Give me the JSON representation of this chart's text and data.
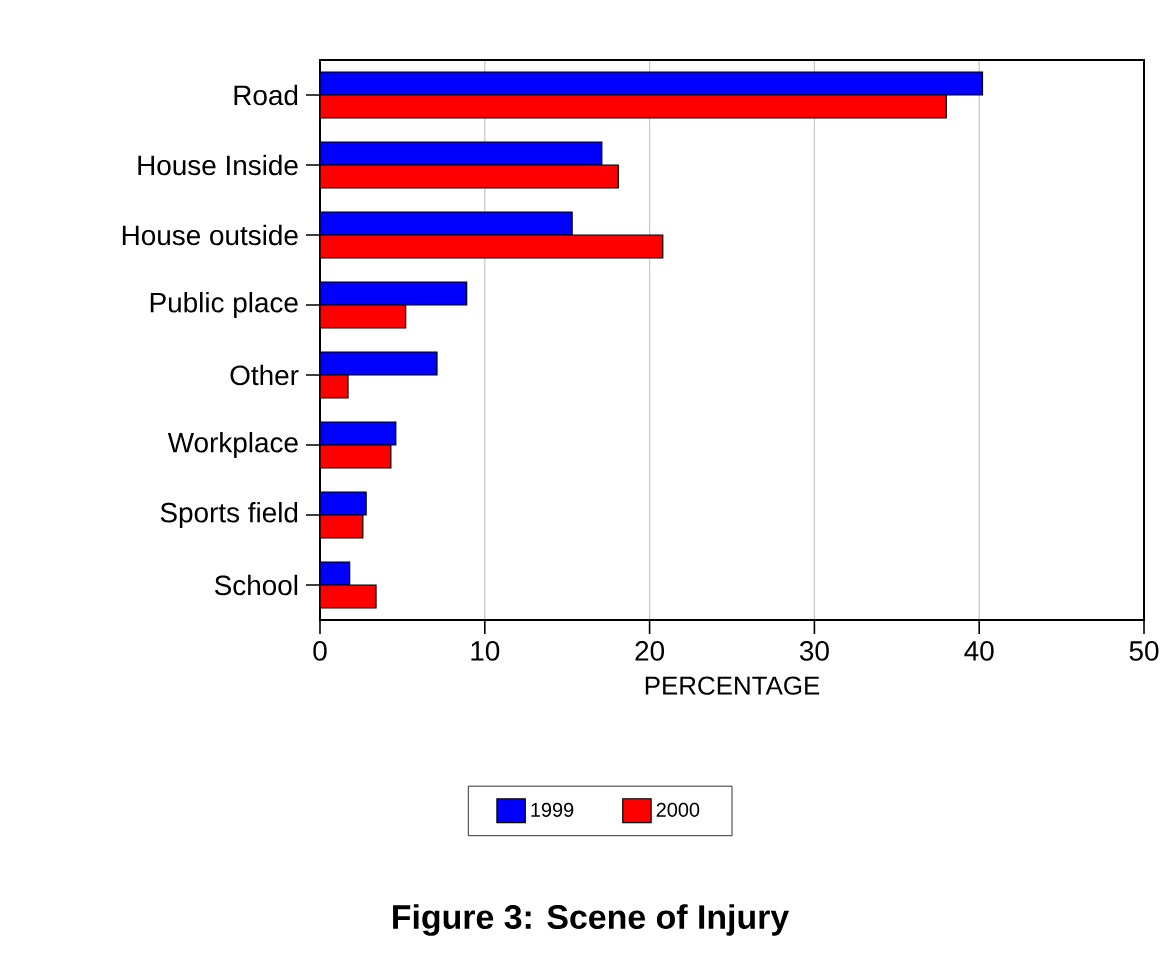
{
  "chart_data": {
    "type": "bar",
    "orientation": "horizontal",
    "title": "Figure 3: Scene of Injury",
    "xlabel": "PERCENTAGE",
    "categories": [
      "Road",
      "House Inside",
      "House outside",
      "Public place",
      "Other",
      "Workplace",
      "Sports field",
      "School"
    ],
    "series": [
      {
        "name": "1999",
        "color": "#0000ff",
        "values": [
          40.2,
          17.1,
          15.3,
          8.9,
          7.1,
          4.6,
          2.8,
          1.8
        ]
      },
      {
        "name": "2000",
        "color": "#ff0000",
        "values": [
          38.0,
          18.1,
          20.8,
          5.2,
          1.7,
          4.3,
          2.6,
          3.4
        ]
      }
    ],
    "xlim": [
      0,
      50
    ],
    "xticks": [
      0,
      10,
      20,
      30,
      40,
      50
    ],
    "grid": "x",
    "legend": "bottom"
  }
}
